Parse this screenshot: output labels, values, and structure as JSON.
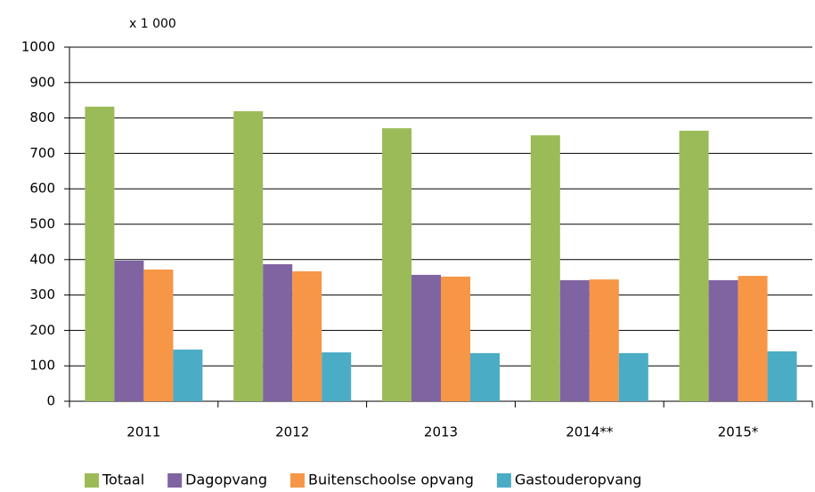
{
  "chart_data": {
    "type": "bar",
    "unit_label": "x 1 000",
    "categories": [
      "2011",
      "2012",
      "2013",
      "2014**",
      "2015*"
    ],
    "series": [
      {
        "name": "Totaal",
        "color": "#9bbb59",
        "values": [
          832,
          819,
          771,
          751,
          764
        ]
      },
      {
        "name": "Dagopvang",
        "color": "#8064a2",
        "values": [
          397,
          387,
          357,
          342,
          342
        ]
      },
      {
        "name": "Buitenschoolse opvang",
        "color": "#f79646",
        "values": [
          372,
          367,
          352,
          344,
          354
        ]
      },
      {
        "name": "Gastouderopvang",
        "color": "#4bacc6",
        "values": [
          146,
          138,
          136,
          136,
          141
        ]
      }
    ],
    "ylim": [
      0,
      1000
    ],
    "yticks": [
      0,
      100,
      200,
      300,
      400,
      500,
      600,
      700,
      800,
      900,
      1000
    ],
    "grid": true,
    "legend": "bottom"
  }
}
